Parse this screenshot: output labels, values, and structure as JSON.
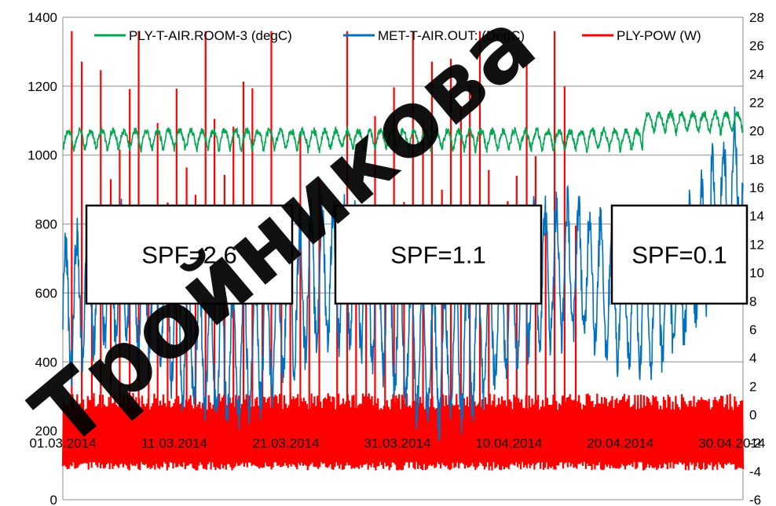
{
  "chart_data": {
    "type": "line",
    "title": "",
    "x": [
      "01.03.2014",
      "11.03.2014",
      "21.03.2014",
      "31.03.2014",
      "10.04.2014",
      "20.04.2014",
      "30.04.2014"
    ],
    "xlim_days": [
      0,
      61
    ],
    "y_left_ticks": [
      "0",
      "200",
      "400",
      "600",
      "800",
      "1000",
      "1200",
      "1400"
    ],
    "y_left_lim": [
      0,
      1400
    ],
    "y_right_ticks": [
      "-6",
      "-4",
      "-2",
      "0",
      "2",
      "4",
      "6",
      "8",
      "10",
      "12",
      "14",
      "16",
      "18",
      "20",
      "22",
      "24",
      "26",
      "28"
    ],
    "y_right_lim": [
      -6,
      28
    ],
    "grid": "horizontal",
    "legend_position": "top",
    "series": [
      {
        "name": "PLY-T-AIR.ROOM-3 (degC)",
        "axis": "right",
        "color": "#00a651",
        "description_values": {
          "typical_min": 18,
          "typical_max": 21,
          "peak": 24
        }
      },
      {
        "name": "MET-T-AIR.OUT: (DegC)",
        "axis": "right",
        "color": "#0070c0",
        "description_values": {
          "typical_min": 3,
          "typical_max": 12,
          "overall_min": -5.5,
          "overall_max": 24
        }
      },
      {
        "name": "PLY-POW  (W)",
        "axis": "left",
        "color": "#ff0000",
        "description_values": {
          "base_min": 80,
          "base_max": 300,
          "spike_max": 1360
        }
      }
    ],
    "annotations": [
      {
        "text": "SPF=2.6"
      },
      {
        "text": "SPF=1.1"
      },
      {
        "text": "SPF=0.1"
      }
    ]
  },
  "watermark": {
    "text": "Тройникова"
  }
}
